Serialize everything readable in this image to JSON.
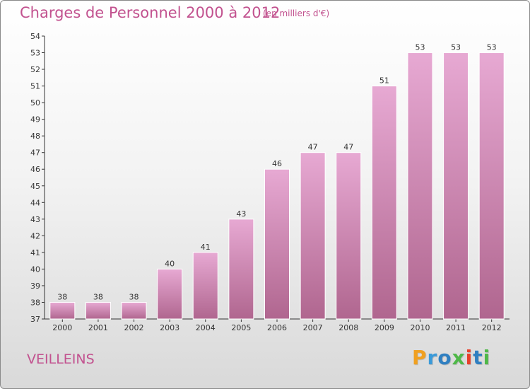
{
  "header": {
    "title": "Charges de Personnel 2000 à 2012",
    "subtitle": "(en milliers d'€)"
  },
  "footer": {
    "commune": "VEILLEINS",
    "logo_letters": [
      "P",
      "r",
      "o",
      "x",
      "i",
      "t",
      "i"
    ],
    "logo_colors": [
      "#f0a020",
      "#3a9ad9",
      "#2f7fc1",
      "#4fb848",
      "#e8402a",
      "#2f7fc1",
      "#4fb848"
    ]
  },
  "colors": {
    "bar_top": "#e7a9d3",
    "bar_bottom": "#b0668f",
    "axis": "#333333",
    "grid": "#bbbbbb",
    "text": "#333333"
  },
  "chart_data": {
    "type": "bar",
    "title": "Charges de Personnel 2000 à 2012",
    "subtitle": "(en milliers d'€)",
    "categories": [
      "2000",
      "2001",
      "2002",
      "2003",
      "2004",
      "2005",
      "2006",
      "2007",
      "2008",
      "2009",
      "2010",
      "2011",
      "2012"
    ],
    "values": [
      38,
      38,
      38,
      40,
      41,
      43,
      46,
      47,
      47,
      51,
      53,
      53,
      53
    ],
    "ylim": [
      37,
      54
    ],
    "yticks": [
      37,
      38,
      39,
      40,
      41,
      42,
      43,
      44,
      45,
      46,
      47,
      48,
      49,
      50,
      51,
      52,
      53,
      54
    ],
    "grid": false,
    "data_labels": true
  }
}
